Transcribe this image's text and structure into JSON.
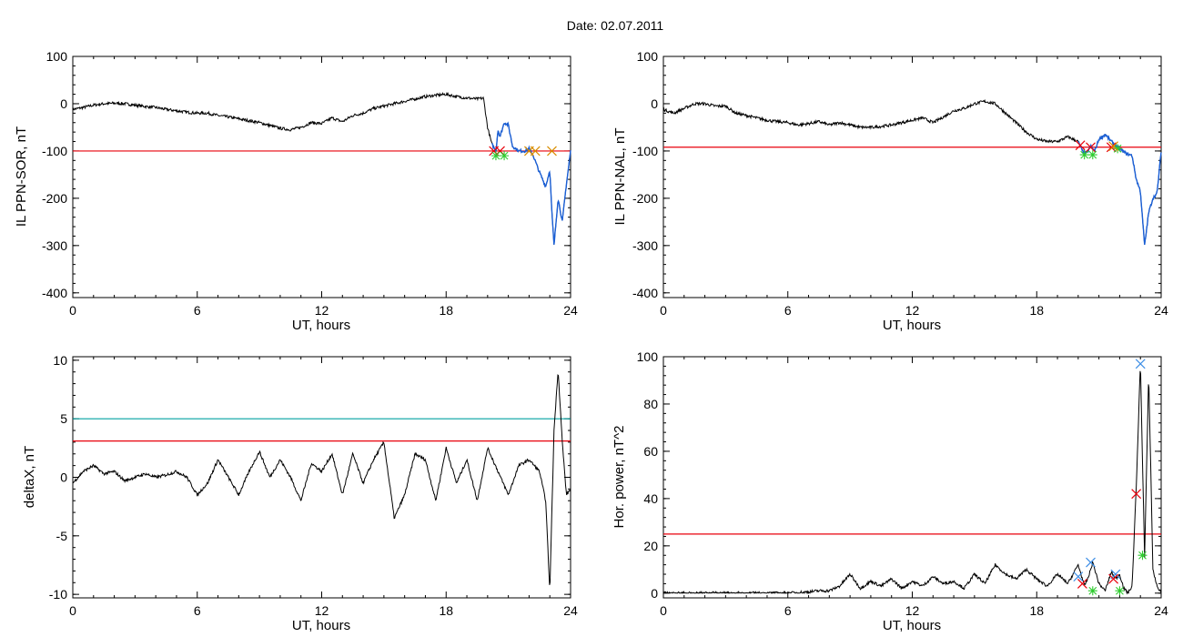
{
  "header": {
    "date_label": "Date:  02.07.2011"
  },
  "colors": {
    "trace": "#000000",
    "threshold_red": "#e8000b",
    "threshold_teal": "#00a0a0",
    "event_blue": "#1a5fd6",
    "cross_red": "#e8000b",
    "cross_green": "#2ecc2e",
    "cross_orange": "#d98c00",
    "cross_blue": "#3d8ee6"
  },
  "chart_data": [
    {
      "type": "line",
      "xlabel": "UT, hours",
      "ylabel": "IL PPN-SOR, nT",
      "xlim": [
        0,
        24
      ],
      "ylim": [
        -410,
        100
      ],
      "xticks": [
        "0",
        "6",
        "12",
        "18",
        "24"
      ],
      "yticks": [
        "100",
        "0",
        "-100",
        "-200",
        "-300",
        "-400"
      ],
      "threshold": -100,
      "event_segment": [
        20.2,
        24
      ],
      "x": [
        0,
        0.5,
        1,
        1.5,
        2,
        2.5,
        3,
        3.5,
        4,
        4.5,
        5,
        5.5,
        6,
        6.5,
        7,
        7.5,
        8,
        8.5,
        9,
        9.5,
        10,
        10.5,
        11,
        11.5,
        12,
        12.5,
        13,
        13.5,
        14,
        14.5,
        15,
        15.5,
        16,
        16.5,
        17,
        17.5,
        18,
        18.5,
        19,
        19.5,
        19.8,
        20,
        20.2,
        20.4,
        20.5,
        20.6,
        20.8,
        21,
        21.2,
        21.5,
        21.8,
        22,
        22.2,
        22.5,
        22.8,
        23,
        23.1,
        23.2,
        23.4,
        23.6,
        23.8,
        24
      ],
      "y": [
        -12,
        -8,
        -3,
        0,
        1,
        0,
        -3,
        -6,
        -8,
        -12,
        -15,
        -18,
        -20,
        -20,
        -25,
        -28,
        -32,
        -36,
        -40,
        -46,
        -52,
        -55,
        -50,
        -40,
        -42,
        -30,
        -38,
        -25,
        -20,
        -10,
        -5,
        0,
        5,
        10,
        15,
        18,
        20,
        15,
        12,
        10,
        12,
        -50,
        -85,
        -100,
        -55,
        -70,
        -40,
        -45,
        -90,
        -100,
        -100,
        -95,
        -110,
        -145,
        -175,
        -140,
        -230,
        -300,
        -200,
        -250,
        -170,
        -100
      ],
      "markers": [
        {
          "x": 20.3,
          "y": -100,
          "symbol": "x",
          "color": "red"
        },
        {
          "x": 20.6,
          "y": -100,
          "symbol": "x",
          "color": "red"
        },
        {
          "x": 20.4,
          "y": -110,
          "symbol": "*",
          "color": "green"
        },
        {
          "x": 20.8,
          "y": -110,
          "symbol": "*",
          "color": "green"
        },
        {
          "x": 22.0,
          "y": -100,
          "symbol": "x",
          "color": "orange"
        },
        {
          "x": 22.3,
          "y": -100,
          "symbol": "x",
          "color": "orange"
        },
        {
          "x": 23.1,
          "y": -100,
          "symbol": "x",
          "color": "orange"
        }
      ]
    },
    {
      "type": "line",
      "xlabel": "UT, hours",
      "ylabel": "IL PPN-NAL, nT",
      "xlim": [
        0,
        24
      ],
      "ylim": [
        -410,
        100
      ],
      "xticks": [
        "0",
        "6",
        "12",
        "18",
        "24"
      ],
      "yticks": [
        "100",
        "0",
        "-100",
        "-200",
        "-300",
        "-400"
      ],
      "threshold": -92,
      "event_segment": [
        20.0,
        24
      ],
      "x": [
        0,
        0.5,
        1,
        1.5,
        2,
        2.5,
        3,
        3.5,
        4,
        4.5,
        5,
        5.5,
        6,
        6.5,
        7,
        7.5,
        8,
        8.5,
        9,
        9.5,
        10,
        10.5,
        11,
        11.5,
        12,
        12.5,
        13,
        13.5,
        14,
        14.5,
        15,
        15.5,
        16,
        16.5,
        17,
        17.5,
        18,
        18.5,
        19,
        19.5,
        20,
        20.2,
        20.4,
        20.6,
        20.8,
        21,
        21.3,
        21.6,
        22,
        22.3,
        22.6,
        22.8,
        23,
        23.2,
        23.4,
        23.6,
        23.8,
        24
      ],
      "y": [
        -12,
        -20,
        -10,
        0,
        0,
        -5,
        -5,
        -20,
        -25,
        -30,
        -35,
        -38,
        -40,
        -45,
        -42,
        -38,
        -45,
        -40,
        -45,
        -50,
        -50,
        -48,
        -45,
        -40,
        -35,
        -30,
        -40,
        -28,
        -15,
        -10,
        0,
        5,
        0,
        -20,
        -40,
        -60,
        -75,
        -80,
        -80,
        -70,
        -80,
        -100,
        -105,
        -90,
        -100,
        -75,
        -65,
        -80,
        -95,
        -105,
        -110,
        -160,
        -185,
        -300,
        -230,
        -200,
        -190,
        -100
      ],
      "markers": [
        {
          "x": 20.1,
          "y": -88,
          "symbol": "x",
          "color": "red"
        },
        {
          "x": 20.6,
          "y": -92,
          "symbol": "x",
          "color": "red"
        },
        {
          "x": 20.3,
          "y": -108,
          "symbol": "*",
          "color": "green"
        },
        {
          "x": 20.7,
          "y": -108,
          "symbol": "*",
          "color": "green"
        },
        {
          "x": 21.6,
          "y": -92,
          "symbol": "x",
          "color": "red"
        },
        {
          "x": 21.9,
          "y": -95,
          "symbol": "*",
          "color": "green"
        },
        {
          "x": 21.7,
          "y": -90,
          "symbol": "x",
          "color": "orange"
        }
      ]
    },
    {
      "type": "line",
      "xlabel": "UT, hours",
      "ylabel": "deltaX, nT",
      "xlim": [
        0,
        24
      ],
      "ylim": [
        -10.3,
        10.3
      ],
      "xticks": [
        "0",
        "6",
        "12",
        "18",
        "24"
      ],
      "yticks": [
        "10",
        "5",
        "0",
        "-5",
        "-10"
      ],
      "thresholds": [
        {
          "value": 5.0,
          "color": "teal"
        },
        {
          "value": 3.1,
          "color": "red"
        }
      ],
      "x": [
        0,
        0.5,
        1,
        1.5,
        2,
        2.5,
        3,
        3.5,
        4,
        4.5,
        5,
        5.5,
        6,
        6.5,
        7,
        7.5,
        8,
        8.5,
        9,
        9.5,
        10,
        10.5,
        11,
        11.5,
        12,
        12.5,
        13,
        13.5,
        14,
        14.5,
        15,
        15.5,
        16,
        16.5,
        17,
        17.5,
        18,
        18.5,
        19,
        19.5,
        20,
        20.5,
        21,
        21.5,
        22,
        22.5,
        22.8,
        23,
        23.2,
        23.4,
        23.6,
        23.8,
        24
      ],
      "y": [
        -0.5,
        0.5,
        1.0,
        0.3,
        0.5,
        -0.3,
        0.0,
        0.3,
        0.0,
        0.2,
        0.5,
        0.0,
        -1.5,
        -0.5,
        1.5,
        0.0,
        -1.5,
        0.5,
        2.2,
        0.0,
        1.5,
        0.0,
        -2.0,
        1.2,
        0.5,
        2.0,
        -1.5,
        2.0,
        -0.5,
        1.5,
        3.0,
        -3.5,
        -1.5,
        2.0,
        1.5,
        -2.0,
        2.5,
        -0.5,
        1.5,
        -2.0,
        2.5,
        0.5,
        -1.5,
        1.0,
        1.5,
        0.5,
        -2.0,
        -9.8,
        4.0,
        9.2,
        3.0,
        -1.5,
        -1.0
      ]
    },
    {
      "type": "line",
      "xlabel": "UT, hours",
      "ylabel": "Hor. power, nT^2",
      "xlim": [
        0,
        24
      ],
      "ylim": [
        -2,
        100
      ],
      "xticks": [
        "0",
        "6",
        "12",
        "18",
        "24"
      ],
      "yticks": [
        "100",
        "80",
        "60",
        "40",
        "20",
        "0"
      ],
      "threshold": 25,
      "x": [
        0,
        1,
        2,
        3,
        4,
        5,
        6,
        7,
        7.5,
        8,
        8.5,
        9,
        9.5,
        10,
        10.5,
        11,
        11.5,
        12,
        12.5,
        13,
        13.5,
        14,
        14.5,
        15,
        15.5,
        16,
        16.5,
        17,
        17.5,
        18,
        18.5,
        19,
        19.5,
        20,
        20.3,
        20.5,
        20.7,
        21,
        21.3,
        21.6,
        21.8,
        22,
        22.2,
        22.4,
        22.6,
        22.8,
        23,
        23.2,
        23.4,
        23.6,
        23.8,
        24
      ],
      "y": [
        0,
        0,
        0,
        0,
        0,
        0,
        0,
        0.5,
        1,
        1,
        3,
        8,
        2,
        5,
        3,
        6,
        2,
        5,
        3,
        7,
        4,
        5,
        2,
        8,
        4,
        12,
        8,
        6,
        10,
        6,
        3,
        8,
        4,
        12,
        3,
        7,
        13,
        4,
        1,
        9,
        6,
        8,
        2,
        0,
        3,
        45,
        98,
        15,
        93,
        10,
        3,
        0
      ],
      "markers": [
        {
          "x": 23.0,
          "y": 97,
          "symbol": "x",
          "color": "blue"
        },
        {
          "x": 22.8,
          "y": 42,
          "symbol": "x",
          "color": "red"
        },
        {
          "x": 23.1,
          "y": 16,
          "symbol": "*",
          "color": "green"
        },
        {
          "x": 20.0,
          "y": 7,
          "symbol": "x",
          "color": "blue"
        },
        {
          "x": 20.6,
          "y": 13,
          "symbol": "x",
          "color": "blue"
        },
        {
          "x": 21.8,
          "y": 8,
          "symbol": "x",
          "color": "blue"
        },
        {
          "x": 20.2,
          "y": 4,
          "symbol": "x",
          "color": "red"
        },
        {
          "x": 21.7,
          "y": 6,
          "symbol": "x",
          "color": "red"
        },
        {
          "x": 20.7,
          "y": 1,
          "symbol": "*",
          "color": "green"
        },
        {
          "x": 22.0,
          "y": 1,
          "symbol": "*",
          "color": "green"
        }
      ]
    }
  ]
}
